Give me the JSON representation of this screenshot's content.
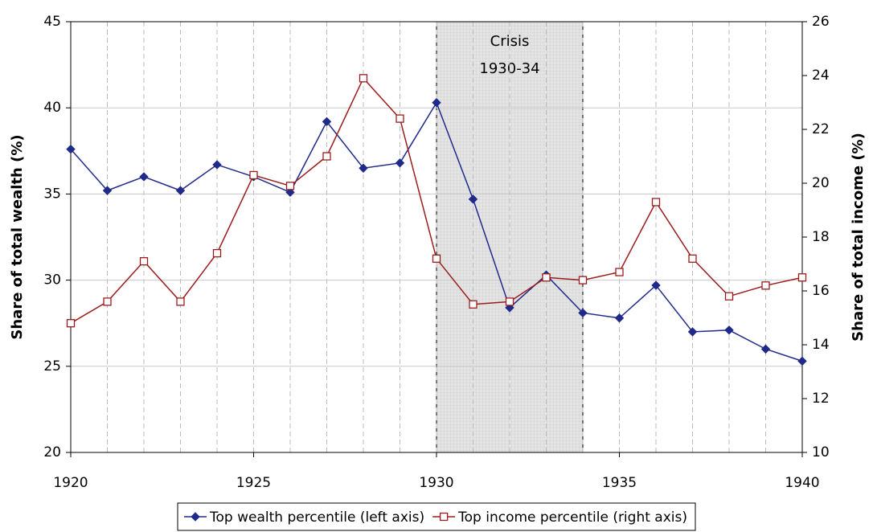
{
  "chart_data": {
    "type": "line",
    "x": [
      1920,
      1921,
      1922,
      1923,
      1924,
      1925,
      1926,
      1927,
      1928,
      1929,
      1930,
      1931,
      1932,
      1933,
      1934,
      1935,
      1936,
      1937,
      1938,
      1939,
      1940
    ],
    "xlim": [
      1920,
      1940
    ],
    "xticks": [
      1920,
      1925,
      1930,
      1935,
      1940
    ],
    "ylim": [
      20,
      45
    ],
    "yticks": [
      20,
      25,
      30,
      35,
      40,
      45
    ],
    "y2lim": [
      10,
      26
    ],
    "y2ticks": [
      10,
      12,
      14,
      16,
      18,
      20,
      22,
      24,
      26
    ],
    "ylabel": "Share of total wealth (%)",
    "y2label": "Share of total income (%)",
    "grid": true,
    "legend": "bottom",
    "shade": {
      "from": 1930,
      "to": 1934,
      "label": [
        "Crisis",
        "1930-34"
      ]
    },
    "series": [
      {
        "name": "Top wealth percentile (left axis)",
        "color": "#1f2a8a",
        "marker": "diamond",
        "values": [
          37.6,
          35.2,
          36.0,
          35.2,
          36.7,
          36.0,
          35.1,
          39.2,
          36.5,
          36.8,
          40.3,
          34.7,
          28.4,
          30.3,
          28.1,
          27.8,
          29.7,
          27.0,
          27.1,
          26.0,
          25.3
        ]
      },
      {
        "name": "Top income percentile (right axis)",
        "color": "#9b1c1c",
        "marker": "square",
        "axis": "y2",
        "values": [
          14.8,
          15.6,
          17.1,
          15.6,
          17.4,
          20.3,
          19.9,
          21.0,
          23.9,
          22.4,
          17.2,
          15.5,
          15.6,
          16.5,
          16.4,
          16.7,
          19.3,
          17.2,
          15.8,
          16.2,
          16.5
        ]
      }
    ]
  }
}
